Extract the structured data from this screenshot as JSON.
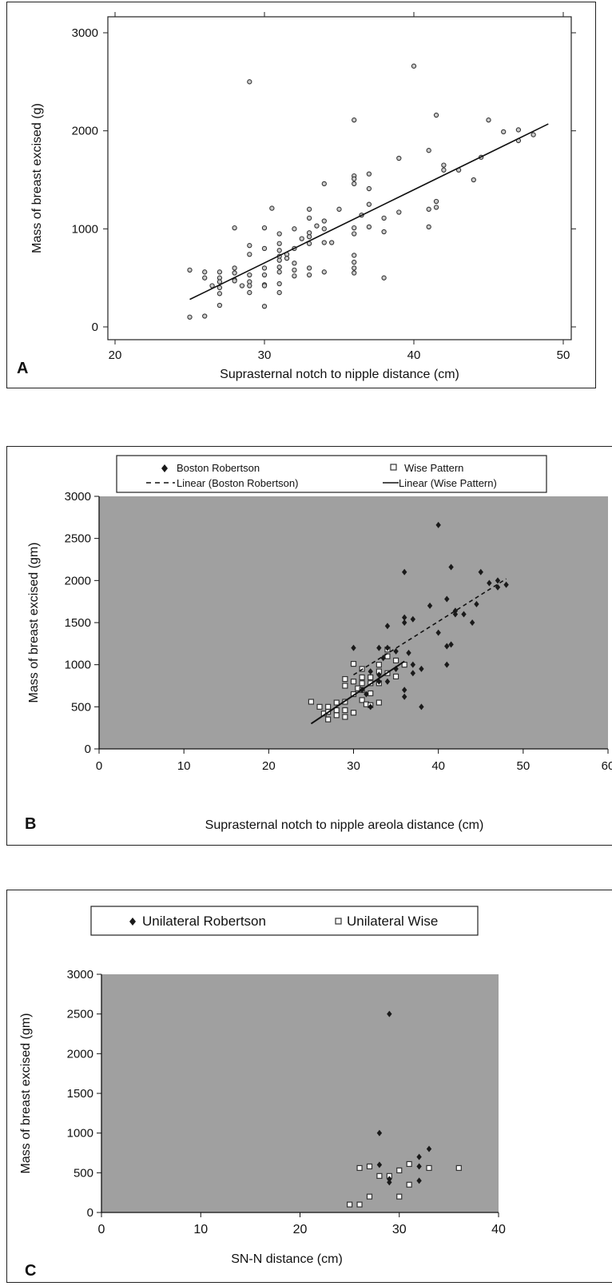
{
  "chart_data": [
    {
      "panel": "A",
      "type": "scatter",
      "xlabel": "Suprasternal notch to nipple distance (cm)",
      "ylabel": "Mass of breast excised (g)",
      "xlim": [
        20,
        50
      ],
      "ylim": [
        0,
        3000
      ],
      "xticks": [
        "20",
        "30",
        "40",
        "50"
      ],
      "yticks": [
        "0",
        "1000",
        "2000",
        "3000"
      ],
      "grid": false,
      "series": [
        {
          "values": [
            [
              25,
              580
            ],
            [
              25,
              100
            ],
            [
              26,
              560
            ],
            [
              26,
              500
            ],
            [
              26,
              110
            ],
            [
              26.5,
              420
            ],
            [
              27,
              560
            ],
            [
              27,
              500
            ],
            [
              27,
              460
            ],
            [
              27,
              400
            ],
            [
              27,
              340
            ],
            [
              27,
              220
            ],
            [
              28,
              1010
            ],
            [
              28,
              600
            ],
            [
              28,
              550
            ],
            [
              28,
              480
            ],
            [
              28,
              470
            ],
            [
              28.5,
              420
            ],
            [
              29,
              2500
            ],
            [
              29,
              830
            ],
            [
              29,
              740
            ],
            [
              29,
              530
            ],
            [
              29,
              460
            ],
            [
              29,
              420
            ],
            [
              29,
              350
            ],
            [
              30,
              1010
            ],
            [
              30,
              800
            ],
            [
              30,
              600
            ],
            [
              30,
              530
            ],
            [
              30,
              430
            ],
            [
              30,
              420
            ],
            [
              30,
              210
            ],
            [
              30.5,
              1210
            ],
            [
              31,
              950
            ],
            [
              31,
              850
            ],
            [
              31,
              780
            ],
            [
              31,
              720
            ],
            [
              31,
              680
            ],
            [
              31,
              610
            ],
            [
              31,
              560
            ],
            [
              31,
              440
            ],
            [
              31,
              350
            ],
            [
              31.5,
              740
            ],
            [
              31.5,
              700
            ],
            [
              32,
              1000
            ],
            [
              32,
              800
            ],
            [
              32,
              650
            ],
            [
              32,
              580
            ],
            [
              32,
              520
            ],
            [
              32.5,
              900
            ],
            [
              33,
              1200
            ],
            [
              33,
              1110
            ],
            [
              33,
              960
            ],
            [
              33,
              920
            ],
            [
              33,
              850
            ],
            [
              33,
              600
            ],
            [
              33,
              530
            ],
            [
              33.5,
              1030
            ],
            [
              34,
              1460
            ],
            [
              34,
              1080
            ],
            [
              34,
              1000
            ],
            [
              34,
              860
            ],
            [
              34,
              560
            ],
            [
              34.5,
              860
            ],
            [
              35,
              1200
            ],
            [
              36,
              2110
            ],
            [
              36,
              1540
            ],
            [
              36,
              1510
            ],
            [
              36,
              1460
            ],
            [
              36,
              1010
            ],
            [
              36,
              950
            ],
            [
              36,
              730
            ],
            [
              36,
              660
            ],
            [
              36,
              600
            ],
            [
              36,
              550
            ],
            [
              36.5,
              1140
            ],
            [
              37,
              1560
            ],
            [
              37,
              1410
            ],
            [
              37,
              1250
            ],
            [
              37,
              1020
            ],
            [
              38,
              1110
            ],
            [
              38,
              970
            ],
            [
              38,
              500
            ],
            [
              39,
              1720
            ],
            [
              39,
              1170
            ],
            [
              40,
              2660
            ],
            [
              41,
              1800
            ],
            [
              41,
              1200
            ],
            [
              41,
              1020
            ],
            [
              41.5,
              2160
            ],
            [
              41.5,
              1280
            ],
            [
              41.5,
              1220
            ],
            [
              42,
              1650
            ],
            [
              42,
              1600
            ],
            [
              43,
              1600
            ],
            [
              44,
              1500
            ],
            [
              44.5,
              1730
            ],
            [
              45,
              2110
            ],
            [
              46,
              1990
            ],
            [
              47,
              2010
            ],
            [
              47,
              1900
            ],
            [
              48,
              1960
            ]
          ]
        },
        {
          "fit": "linear",
          "x": [
            25,
            49
          ],
          "y": [
            280,
            2070
          ]
        }
      ]
    },
    {
      "panel": "B",
      "type": "scatter",
      "xlabel": "Suprasternal notch to nipple areola distance (cm)",
      "ylabel": "Mass of breast excised (gm)",
      "xlim": [
        0,
        60
      ],
      "ylim": [
        0,
        3000
      ],
      "xticks": [
        "0",
        "10",
        "20",
        "30",
        "40",
        "50",
        "60"
      ],
      "yticks": [
        "0",
        "500",
        "1000",
        "1500",
        "2000",
        "2500",
        "3000"
      ],
      "legend": "top",
      "series": [
        {
          "name": "Boston Robertson",
          "values": [
            [
              30,
              1200
            ],
            [
              31,
              700
            ],
            [
              31.5,
              650
            ],
            [
              32,
              920
            ],
            [
              32,
              500
            ],
            [
              33,
              1200
            ],
            [
              33,
              880
            ],
            [
              33,
              800
            ],
            [
              33.5,
              1080
            ],
            [
              34,
              1460
            ],
            [
              34,
              1200
            ],
            [
              34,
              800
            ],
            [
              35,
              1160
            ],
            [
              35,
              950
            ],
            [
              36,
              2100
            ],
            [
              36,
              1560
            ],
            [
              36,
              1500
            ],
            [
              36,
              700
            ],
            [
              36,
              620
            ],
            [
              36.5,
              1140
            ],
            [
              37,
              1540
            ],
            [
              37,
              1000
            ],
            [
              37,
              900
            ],
            [
              38,
              950
            ],
            [
              38,
              500
            ],
            [
              39,
              1700
            ],
            [
              40,
              2660
            ],
            [
              40,
              1380
            ],
            [
              41,
              1780
            ],
            [
              41,
              1220
            ],
            [
              41,
              1000
            ],
            [
              41.5,
              2160
            ],
            [
              41.5,
              1240
            ],
            [
              42,
              1640
            ],
            [
              42,
              1600
            ],
            [
              43,
              1600
            ],
            [
              44,
              1500
            ],
            [
              44.5,
              1720
            ],
            [
              45,
              2100
            ],
            [
              46,
              1970
            ],
            [
              47,
              2000
            ],
            [
              47,
              1920
            ],
            [
              48,
              1950
            ]
          ]
        },
        {
          "name": "Wise Pattern",
          "values": [
            [
              25,
              560
            ],
            [
              26,
              500
            ],
            [
              26.5,
              420
            ],
            [
              27,
              500
            ],
            [
              27,
              440
            ],
            [
              27,
              350
            ],
            [
              28,
              550
            ],
            [
              28,
              460
            ],
            [
              28,
              400
            ],
            [
              29,
              830
            ],
            [
              29,
              750
            ],
            [
              29,
              560
            ],
            [
              29,
              460
            ],
            [
              29,
              380
            ],
            [
              30,
              1010
            ],
            [
              30,
              800
            ],
            [
              30,
              650
            ],
            [
              30,
              430
            ],
            [
              30.5,
              720
            ],
            [
              31,
              950
            ],
            [
              31,
              850
            ],
            [
              31,
              780
            ],
            [
              31,
              700
            ],
            [
              31,
              580
            ],
            [
              31.5,
              530
            ],
            [
              32,
              850
            ],
            [
              32,
              780
            ],
            [
              32,
              660
            ],
            [
              32,
              520
            ],
            [
              33,
              1000
            ],
            [
              33,
              920
            ],
            [
              33,
              780
            ],
            [
              33,
              550
            ],
            [
              34,
              1180
            ],
            [
              34,
              1100
            ],
            [
              34,
              900
            ],
            [
              35,
              1050
            ],
            [
              35,
              860
            ],
            [
              36,
              1000
            ]
          ]
        },
        {
          "name": "Linear (Boston Robertson)",
          "fit": "linear",
          "dash": true,
          "x": [
            30,
            48
          ],
          "y": [
            880,
            2020
          ]
        },
        {
          "name": "Linear (Wise Pattern)",
          "fit": "linear",
          "x": [
            25,
            36
          ],
          "y": [
            300,
            1040
          ]
        }
      ]
    },
    {
      "panel": "C",
      "type": "scatter",
      "xlabel": "SN-N distance (cm)",
      "ylabel": "Mass of breast excised (gm)",
      "xlim": [
        0,
        40
      ],
      "ylim": [
        0,
        3000
      ],
      "xticks": [
        "0",
        "10",
        "20",
        "30",
        "40"
      ],
      "yticks": [
        "0",
        "500",
        "1000",
        "1500",
        "2000",
        "2500",
        "3000"
      ],
      "legend": "top",
      "series": [
        {
          "name": "Unilateral Robertson",
          "values": [
            [
              28,
              1000
            ],
            [
              28,
              600
            ],
            [
              29,
              2500
            ],
            [
              29,
              420
            ],
            [
              29,
              380
            ],
            [
              32,
              700
            ],
            [
              32,
              580
            ],
            [
              32,
              400
            ],
            [
              33,
              800
            ]
          ]
        },
        {
          "name": "Unilateral Wise",
          "values": [
            [
              25,
              100
            ],
            [
              26,
              560
            ],
            [
              26,
              100
            ],
            [
              27,
              580
            ],
            [
              27,
              200
            ],
            [
              28,
              460
            ],
            [
              29,
              460
            ],
            [
              30,
              530
            ],
            [
              30,
              200
            ],
            [
              31,
              610
            ],
            [
              31,
              350
            ],
            [
              33,
              560
            ],
            [
              36,
              560
            ]
          ]
        }
      ]
    }
  ],
  "colors": {
    "plot_bg": "#a0a0a0",
    "marker_dark": "#1a1a1a",
    "marker_light": "#ffffff",
    "line": "#111111"
  }
}
